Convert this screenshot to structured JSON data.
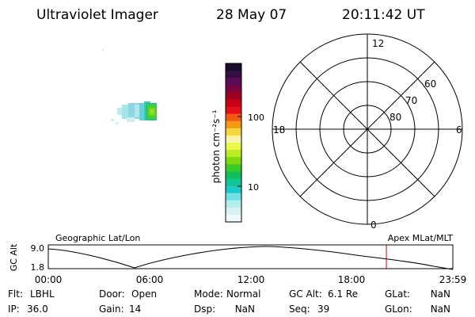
{
  "header": {
    "instrument": "Ultraviolet Imager",
    "date": "28 May 07",
    "time": "20:11:42 UT"
  },
  "colorbar": {
    "unit_label": "photon cm⁻²s⁻¹",
    "tick_labels": [
      "100",
      "10"
    ],
    "colors": [
      "#1b0b2e",
      "#351040",
      "#5a0b53",
      "#7a0540",
      "#a0001e",
      "#c8001a",
      "#e41015",
      "#ef5a10",
      "#f59a10",
      "#f5d640",
      "#faf2b0",
      "#e8f84a",
      "#b8ee22",
      "#7ada10",
      "#38cc28",
      "#12c05a",
      "#0fc49a",
      "#1cc8c8",
      "#74dee0",
      "#b4ecee",
      "#d8f2f4",
      "#eef8f8"
    ]
  },
  "polar_plot": {
    "mlt_labels": [
      "12",
      "18",
      "6",
      "0"
    ],
    "lat_labels": [
      "60",
      "70",
      "80"
    ]
  },
  "orbit": {
    "left_label": "Geographic Lat/Lon",
    "right_label": "Apex MLat/MLT",
    "axis_label": "GC Alt",
    "y_ticks": [
      "9.0",
      "1.8"
    ],
    "x_ticks": [
      "00:00",
      "06:00",
      "12:00",
      "18:00",
      "23:59"
    ],
    "marker_color": "#c00000"
  },
  "info": {
    "row1": [
      {
        "label": "Flt:",
        "value": "LBHL"
      },
      {
        "label": "Door:",
        "value": "Open"
      },
      {
        "label": "Mode:",
        "value": "Normal"
      },
      {
        "label": "GC Alt:",
        "value": "6.1 Re"
      },
      {
        "label": "GLat:",
        "value": "NaN"
      }
    ],
    "row2": [
      {
        "label": "IP:",
        "value": "36.0"
      },
      {
        "label": "Gain:",
        "value": "14"
      },
      {
        "label": "Dsp:",
        "value": "NaN"
      },
      {
        "label": "Seq:",
        "value": "39"
      },
      {
        "label": "GLon:",
        "value": "NaN"
      }
    ]
  }
}
